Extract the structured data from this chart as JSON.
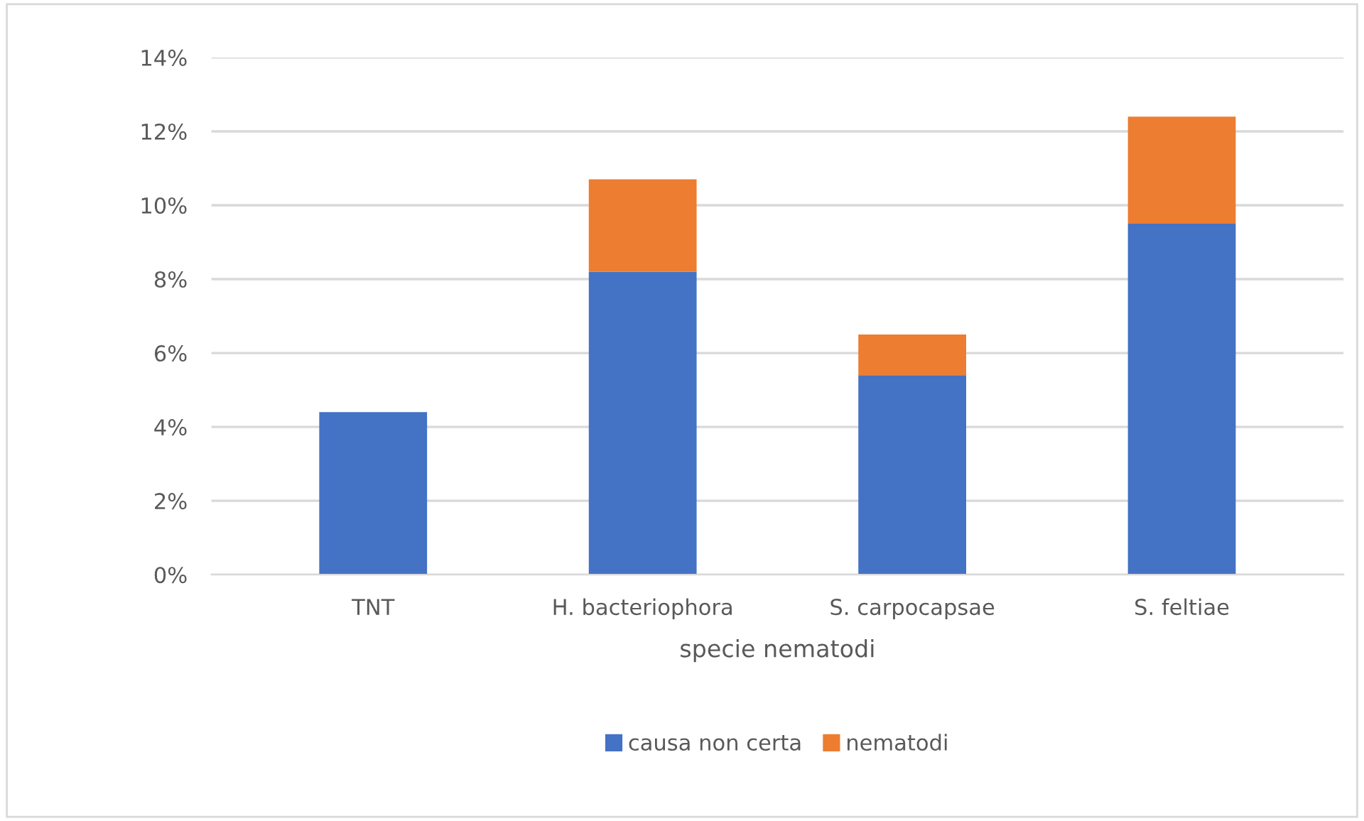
{
  "chart_data": {
    "type": "bar",
    "stacked": true,
    "categories": [
      "TNT",
      "H. bacteriophora",
      "S. carpocapsae",
      "S. feltiae"
    ],
    "series": [
      {
        "name": "causa non certa",
        "color": "#4472c4",
        "values": [
          4.4,
          8.2,
          5.4,
          9.5
        ]
      },
      {
        "name": "nematodi",
        "color": "#ed7d31",
        "values": [
          0,
          2.5,
          1.1,
          2.9
        ]
      }
    ],
    "xlabel": "specie nematodi",
    "ylim": [
      0,
      14
    ],
    "yticks": [
      {
        "value": 0,
        "label": "0%"
      },
      {
        "value": 2,
        "label": "2%"
      },
      {
        "value": 4,
        "label": "4%"
      },
      {
        "value": 6,
        "label": "6%"
      },
      {
        "value": 8,
        "label": "8%"
      },
      {
        "value": 10,
        "label": "10%"
      },
      {
        "value": 12,
        "label": "12%"
      },
      {
        "value": 14,
        "label": "14%"
      }
    ],
    "grid": "y",
    "legend": "bottom"
  }
}
